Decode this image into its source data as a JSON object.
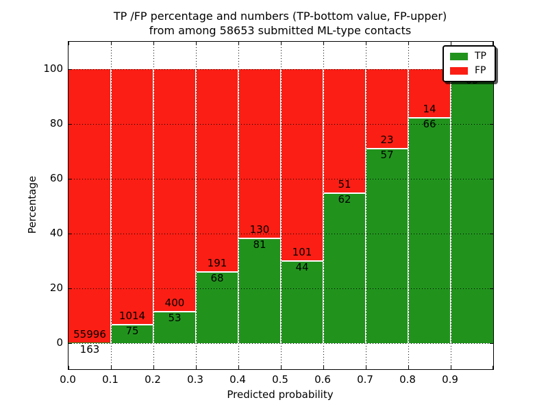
{
  "figure": {
    "title_line1": "TP /FP percentage and numbers (TP-bottom value, FP-upper)",
    "title_line2": "from among 58653 submitted ML-type contacts"
  },
  "chart_data": {
    "type": "bar",
    "subtype": "stacked-percentage-bars",
    "title": "TP /FP percentage and numbers (TP-bottom value, FP-upper) from among 58653 submitted ML-type contacts",
    "xlabel": "Predicted probability",
    "ylabel": "Percentage",
    "x_tick_labels": [
      "0.0",
      "0.1",
      "0.2",
      "0.3",
      "0.4",
      "0.5",
      "0.6",
      "0.7",
      "0.8",
      "0.9"
    ],
    "y_ticks": [
      0,
      20,
      40,
      60,
      80,
      100
    ],
    "ylim": [
      -10,
      110
    ],
    "xlim": [
      0.0,
      1.0
    ],
    "bin_width": 0.1,
    "grid": "dotted, both axes",
    "legend": {
      "position": "upper right",
      "entries": [
        {
          "label": "TP",
          "color": "#21931d"
        },
        {
          "label": "FP",
          "color": "#fb1e14"
        }
      ]
    },
    "categories": [
      "0.0-0.1",
      "0.1-0.2",
      "0.2-0.3",
      "0.3-0.4",
      "0.4-0.5",
      "0.5-0.6",
      "0.6-0.7",
      "0.7-0.8",
      "0.8-0.9",
      "0.9-1.0"
    ],
    "series": [
      {
        "name": "TP",
        "counts": [
          163,
          75,
          53,
          68,
          81,
          44,
          62,
          57,
          66,
          63
        ],
        "pct": [
          0.3,
          6.9,
          11.7,
          26.3,
          38.4,
          30.3,
          54.9,
          71.3,
          82.5,
          98.4
        ],
        "labels": [
          "163",
          "75",
          "53",
          "68",
          "81",
          "44",
          "62",
          "57",
          "66",
          "63"
        ]
      },
      {
        "name": "FP",
        "counts": [
          55996,
          1014,
          400,
          191,
          130,
          101,
          51,
          23,
          14,
          null
        ],
        "pct": [
          99.7,
          93.1,
          88.3,
          73.7,
          61.6,
          69.7,
          45.1,
          28.7,
          17.5,
          1.6
        ],
        "labels": [
          "55996",
          "1014",
          "400",
          "191",
          "130",
          "101",
          "51",
          "23",
          "14",
          ""
        ]
      }
    ]
  },
  "colors": {
    "tp_green": "#21931d",
    "fp_red": "#fb1e14",
    "grid_line": "#000000",
    "bar_edge": "#ffffff",
    "background": "#ffffff"
  }
}
